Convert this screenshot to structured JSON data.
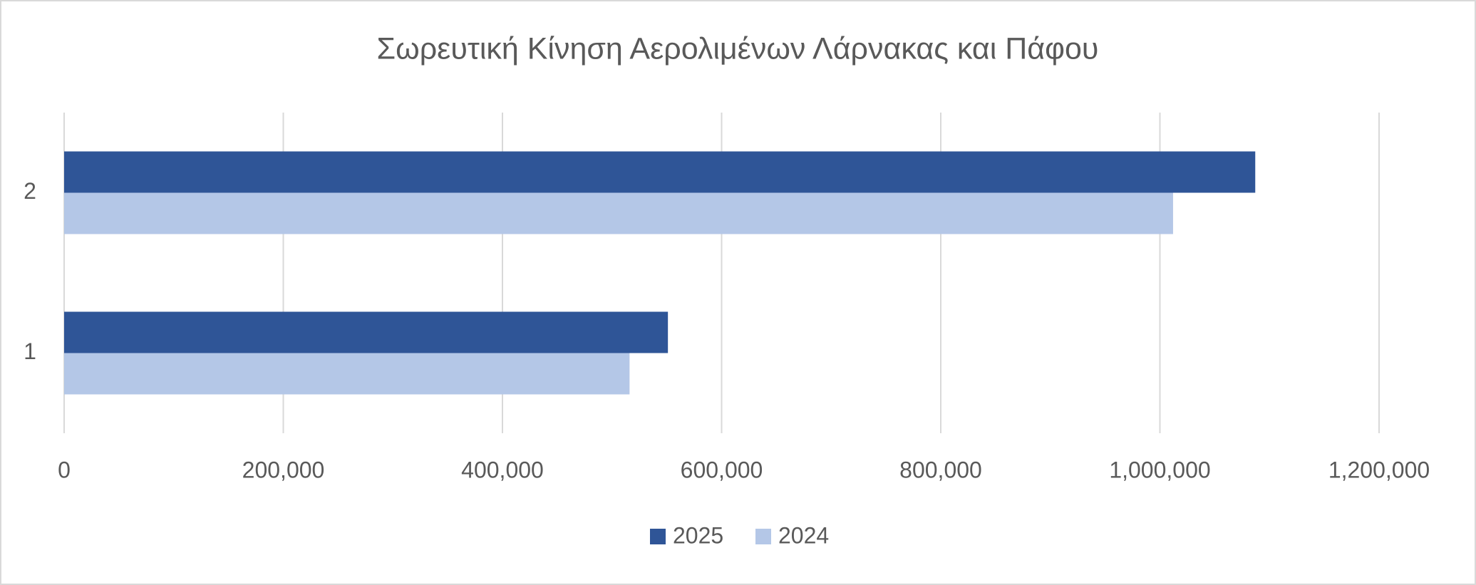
{
  "chart_data": {
    "type": "hbar",
    "title": "Σωρευτική Κίνηση Αερολιμένων Λάρνακας και Πάφου",
    "categories": [
      "1",
      "2"
    ],
    "series": [
      {
        "name": "2025",
        "color": "#2f5597",
        "values": [
          551000,
          1087000
        ]
      },
      {
        "name": "2024",
        "color": "#b4c7e7",
        "values": [
          516000,
          1012000
        ]
      }
    ],
    "xlim": [
      0,
      1200000
    ],
    "xticks": [
      0,
      {
        "value": 200000,
        "label": "200,000"
      },
      {
        "value": 400000,
        "label": "400,000"
      },
      {
        "value": 600000,
        "label": "600,000"
      },
      {
        "value": 800000,
        "label": "800,000"
      },
      {
        "value": 1000000,
        "label": "1,000,000"
      },
      {
        "value": 1200000,
        "label": "1,200,000"
      }
    ],
    "grid": true,
    "legend": "bottom"
  }
}
